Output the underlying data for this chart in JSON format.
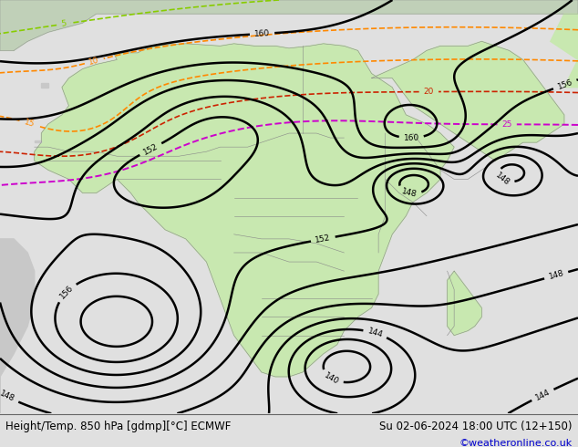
{
  "title_left": "Height/Temp. 850 hPa [gdmp][°C] ECMWF",
  "title_right": "Su 02-06-2024 18:00 UTC (12+150)",
  "credit": "©weatheronline.co.uk",
  "bg_color": "#e0e0e0",
  "fig_width": 6.34,
  "fig_height": 4.9,
  "dpi": 100,
  "ocean_color": "#d2d2d2",
  "land_green": "#c8e8b0",
  "land_gray": "#c8c8c8",
  "title_fontsize": 8.5,
  "credit_fontsize": 8,
  "credit_color": "#0000cc",
  "bottom_bar_color": "#e8e8e8",
  "col_black": "#000000",
  "col_magenta": "#cc00cc",
  "col_red": "#cc2200",
  "col_orange": "#ff8800",
  "col_lgreen": "#88cc00",
  "col_cyan": "#00aaaa",
  "col_gray_line": "#888888"
}
